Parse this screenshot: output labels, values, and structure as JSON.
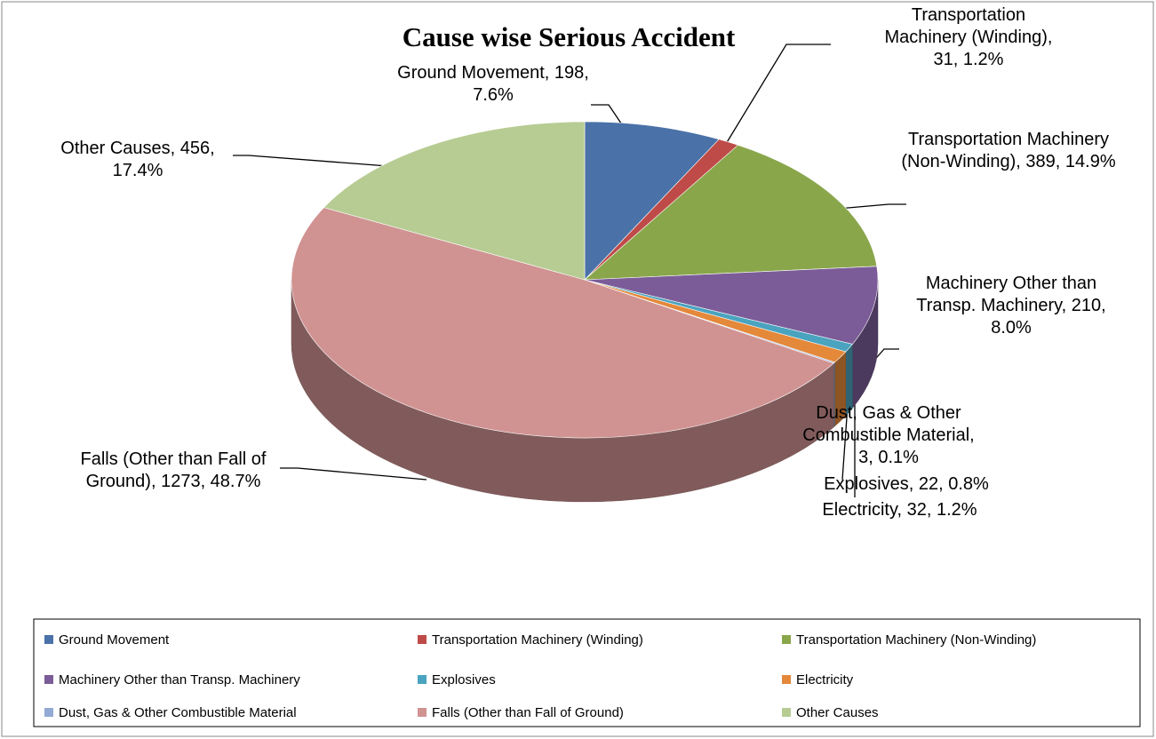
{
  "chart_data": {
    "type": "pie",
    "title": "Cause wise Serious Accident",
    "categories": [
      "Ground Movement",
      "Transportation Machinery (Winding)",
      "Transportation Machinery (Non-Winding)",
      "Machinery Other than Transp. Machinery",
      "Explosives",
      "Electricity",
      "Dust, Gas & Other Combustible Material",
      "Falls (Other than Fall of Ground)",
      "Other Causes"
    ],
    "values": [
      198,
      31,
      389,
      210,
      22,
      32,
      3,
      1273,
      456
    ],
    "value_labels": [
      "Ground Movement, 198, 7.6%",
      "Transportation Machinery (Winding), 31, 1.2%",
      "Transportation Machinery (Non-Winding), 389, 14.9%",
      "Machinery Other than Transp. Machinery, 210, 8.0%",
      "Explosives, 22, 0.8%",
      "Electricity, 32, 1.2%",
      "Dust, Gas & Other Combustible Material, 3, 0.1%",
      "Falls (Other than Fall of Ground), 1273, 48.7%",
      "Other Causes, 456, 17.4%"
    ],
    "colors": [
      "#4a72a8",
      "#be4b48",
      "#8aa64b",
      "#7b5c98",
      "#4aa3bf",
      "#e4883a",
      "#93aad4",
      "#d09392",
      "#b7cc93"
    ],
    "legend": "bottom"
  }
}
